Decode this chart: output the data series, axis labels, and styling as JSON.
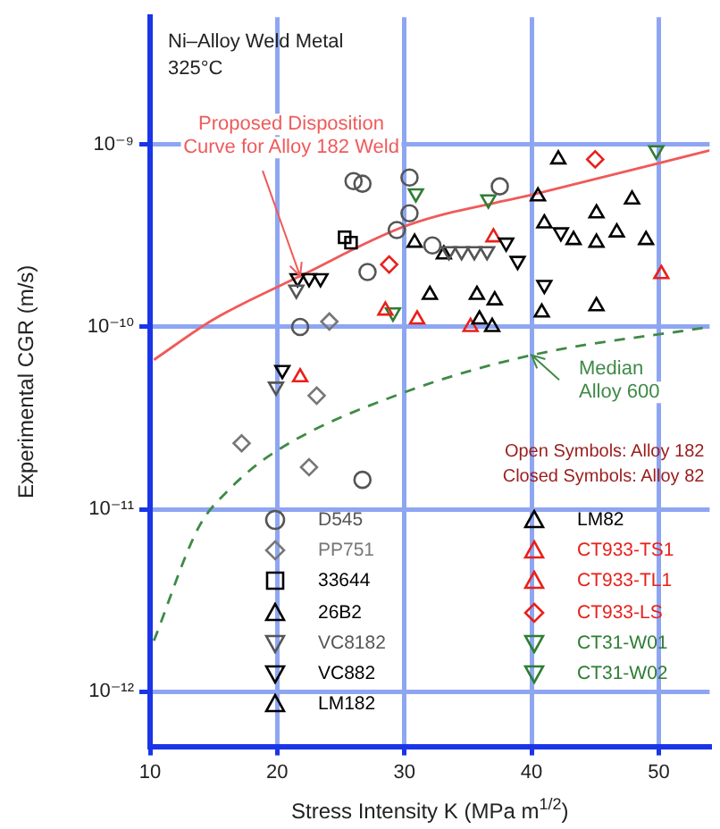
{
  "chart_data": {
    "type": "scatter",
    "xlabel": "Stress Intensity K (MPa m$^{1/2}$)",
    "ylabel": "Experimental CGR (m/s)",
    "xlim": [
      10,
      54
    ],
    "xticks": [
      10,
      20,
      30,
      40,
      50
    ],
    "ylim": [
      5e-13,
      5e-09
    ],
    "log": "y",
    "yticks": [
      {
        "value": 1e-12,
        "label": "10⁻¹²"
      },
      {
        "value": 1e-11,
        "label": "10⁻¹¹"
      },
      {
        "value": 1e-10,
        "label": "10⁻¹⁰"
      },
      {
        "value": 1e-09,
        "label": "10⁻⁹"
      }
    ],
    "grid": true,
    "legend": "bottom",
    "annotations": [
      "Ni–Alloy Weld Metal",
      "325°C",
      "Open Symbols: Alloy 182",
      "Closed Symbols: Alloy 82"
    ],
    "series": [
      {
        "name": "D545",
        "color": "#555555",
        "marker": "circle",
        "x": [
          26.0,
          26.7,
          30.4,
          30.4,
          29.4,
          37.5,
          27.1,
          21.8,
          32.2,
          26.7
        ],
        "values": [
          6.3e-10,
          6.1e-10,
          6.6e-10,
          4.2e-10,
          3.4e-10,
          5.9e-10,
          2e-10,
          1e-10,
          2.8e-10,
          1.45e-11
        ]
      },
      {
        "name": "PP751",
        "color": "#777777",
        "marker": "diamond",
        "x": [
          24.1,
          23.1,
          17.2,
          22.5
        ],
        "values": [
          1.07e-10,
          4.2e-11,
          2.3e-11,
          1.7e-11
        ]
      },
      {
        "name": "33644",
        "color": "#000000",
        "marker": "square",
        "x": [
          25.3,
          25.8
        ],
        "values": [
          3.1e-10,
          2.9e-10
        ]
      },
      {
        "name": "26B2",
        "color": "#000000",
        "marker": "triangle",
        "x": [
          42.1,
          47.9,
          45.1,
          41.0,
          49.0,
          30.8,
          32.0,
          45.1,
          40.5,
          43.3
        ],
        "values": [
          8.3e-10,
          5e-10,
          4.2e-10,
          3.7e-10,
          3e-10,
          2.9e-10,
          1.5e-10,
          1.3e-10,
          5.2e-10,
          3e-10
        ]
      },
      {
        "name": "VC8182",
        "color": "#555555",
        "marker": "triangle-down",
        "x": [
          33.5,
          34.5,
          35.5,
          36.5,
          19.9,
          21.5
        ],
        "values": [
          2.6e-10,
          2.6e-10,
          2.6e-10,
          2.6e-10,
          4.7e-11,
          1.6e-10
        ]
      },
      {
        "name": "VC882",
        "color": "#000000",
        "marker": "triangle-down",
        "x": [
          21.6,
          22.5,
          23.4,
          38.0,
          38.9,
          42.3,
          41.0,
          20.4
        ],
        "values": [
          1.85e-10,
          1.85e-10,
          1.85e-10,
          2.9e-10,
          2.3e-10,
          3.3e-10,
          1.7e-10,
          5.8e-11
        ]
      },
      {
        "name": "LM182",
        "color": "#000000",
        "marker": "triangle",
        "x": [
          33.1,
          35.7,
          37.1,
          40.8,
          36.9,
          46.7,
          45.1
        ],
        "values": [
          2.5e-10,
          1.5e-10,
          1.4e-10,
          1.2e-10,
          1e-10,
          3.3e-10,
          2.9e-10
        ]
      },
      {
        "name": "LM82",
        "color": "#000000",
        "marker": "triangle",
        "x": [
          35.9
        ],
        "values": [
          1.1e-10
        ]
      },
      {
        "name": "CT933-TS1",
        "color": "#e8201a",
        "marker": "triangle",
        "x": [
          37.0,
          28.5
        ],
        "values": [
          3.1e-10,
          1.23e-10
        ]
      },
      {
        "name": "CT933-TL1",
        "color": "#e8201a",
        "marker": "triangle",
        "x": [
          31.0,
          35.2,
          50.2,
          21.8
        ],
        "values": [
          1.1e-10,
          1e-10,
          1.95e-10,
          5.3e-11
        ]
      },
      {
        "name": "CT933-LS",
        "color": "#e8201a",
        "marker": "diamond",
        "x": [
          45.0,
          28.8
        ],
        "values": [
          8.3e-10,
          2.2e-10
        ]
      },
      {
        "name": "CT31-W01",
        "color": "#2e7d32",
        "marker": "triangle-down",
        "x": [
          29.1
        ],
        "values": [
          1.2e-10
        ]
      },
      {
        "name": "CT31-W02",
        "color": "#2e7d32",
        "marker": "triangle-down",
        "x": [
          49.8,
          30.9,
          36.6
        ],
        "values": [
          9.3e-10,
          5.4e-10,
          5e-10
        ]
      },
      {
        "name": "Proposed Disposition Curve for Alloy 182 Weld",
        "type": "line",
        "color": "#f05a5a",
        "line_style": "solid",
        "x": [
          10.3,
          15,
          21.8,
          30.2,
          40.5,
          54
        ],
        "values": [
          6.6e-11,
          1.1e-10,
          1.9e-10,
          3.6e-10,
          5.4e-10,
          9.3e-10
        ]
      },
      {
        "name": "Median Alloy 600",
        "type": "line",
        "color": "#3f8a46",
        "line_style": "dashed",
        "x": [
          10.3,
          13.8,
          16.3,
          20,
          29.7,
          40,
          54
        ],
        "values": [
          1.9e-12,
          7.9e-12,
          1.3e-11,
          2.1e-11,
          4.3e-11,
          7e-11,
          1e-10
        ]
      }
    ]
  }
}
